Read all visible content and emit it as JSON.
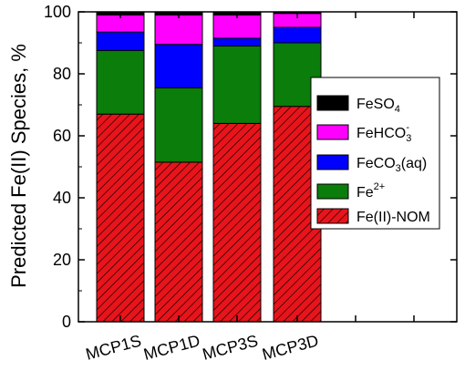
{
  "chart_data": {
    "type": "bar",
    "stacked": true,
    "categories": [
      "MCP1S",
      "MCP1D",
      "MCP3S",
      "MCP3D"
    ],
    "ylabel": "Predicted Fe(II) Species, %",
    "ylim": [
      0,
      100
    ],
    "yticks": [
      0,
      20,
      40,
      60,
      80,
      100
    ],
    "grid": false,
    "legend_position": "right",
    "series": [
      {
        "name": "Fe(II)-NOM",
        "color": "#e8141b",
        "pattern": "hatched",
        "values": [
          67,
          51.5,
          64,
          69.5
        ]
      },
      {
        "name": "Fe2+",
        "color": "#0a7d0a",
        "values": [
          20.5,
          24,
          25,
          20.5
        ]
      },
      {
        "name": "FeCO3(aq)",
        "color": "#0000ff",
        "values": [
          6,
          14,
          2.5,
          5
        ]
      },
      {
        "name": "FeHCO3-",
        "color": "#ff00ff",
        "values": [
          5.5,
          9.5,
          7.5,
          4.5
        ]
      },
      {
        "name": "FeSO4",
        "color": "#000000",
        "values": [
          1,
          1,
          1,
          0.5
        ]
      }
    ]
  },
  "legend": {
    "entries": [
      {
        "name": "FeSO4",
        "base": "FeSO",
        "sub": "4",
        "sup": "",
        "tail": ""
      },
      {
        "name": "FeHCO3-",
        "base": "FeHCO",
        "sub": "3",
        "sup": "-",
        "tail": ""
      },
      {
        "name": "FeCO3(aq)",
        "base": "FeCO",
        "sub": "3",
        "sup": "",
        "tail": "(aq)"
      },
      {
        "name": "Fe2+",
        "base": "Fe",
        "sub": "",
        "sup": "2+",
        "tail": ""
      },
      {
        "name": "Fe(II)-NOM",
        "base": "Fe(II)-NOM",
        "sub": "",
        "sup": "",
        "tail": ""
      }
    ]
  }
}
